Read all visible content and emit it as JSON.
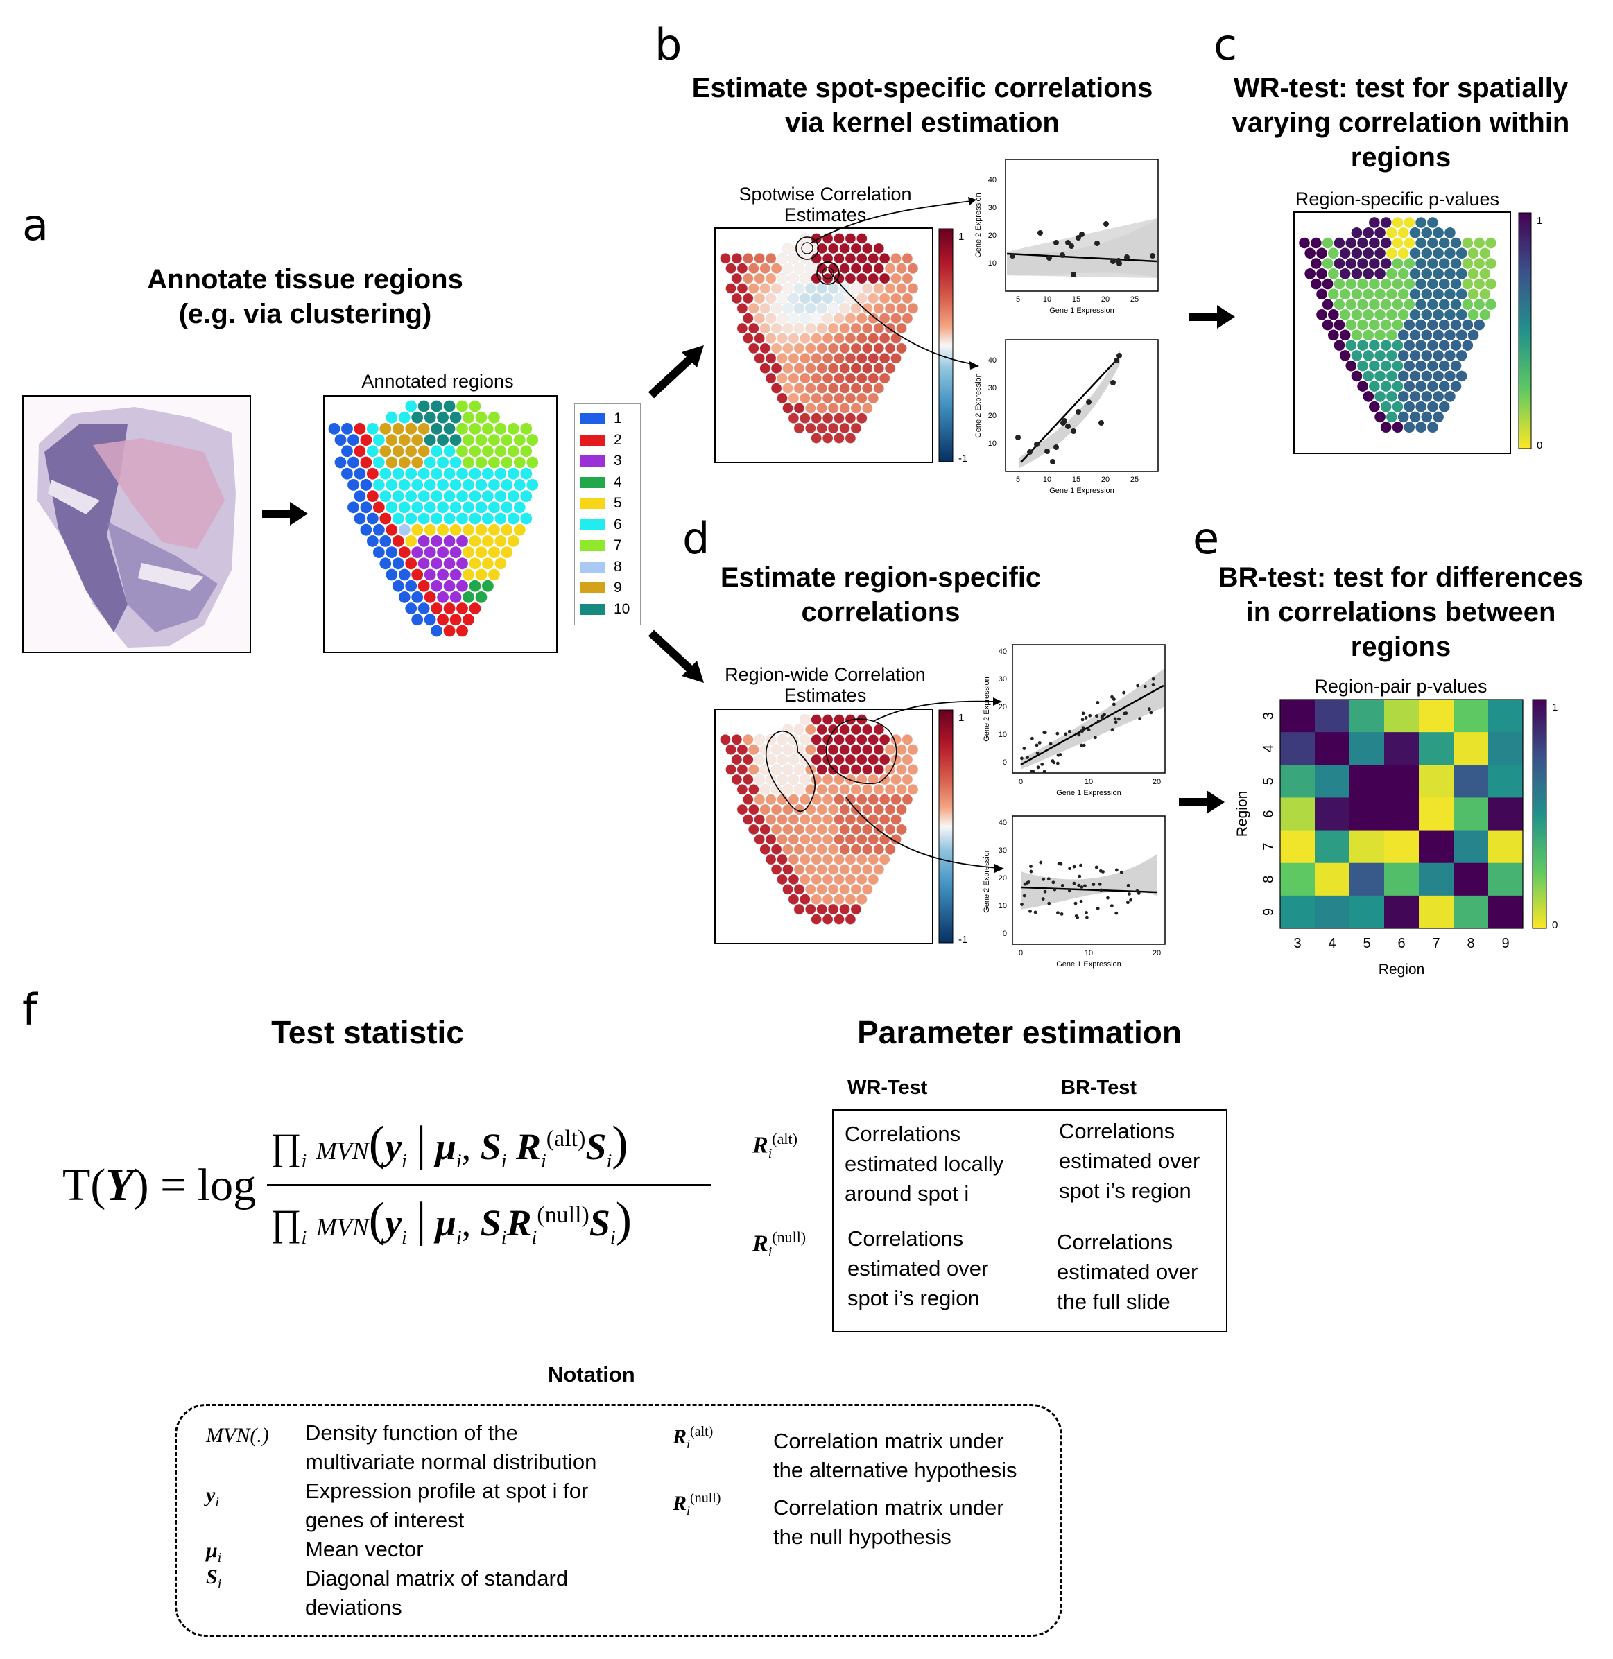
{
  "panels": {
    "a": {
      "letter": "a",
      "title": "Annotate tissue regions\n(e.g. via clustering)",
      "subtitle": "Annotated regions",
      "legend": [
        "1",
        "2",
        "3",
        "4",
        "5",
        "6",
        "7",
        "8",
        "9",
        "10"
      ],
      "legend_colors": [
        "#1f5fe6",
        "#e41a1c",
        "#9b30d9",
        "#22a84a",
        "#f7d61a",
        "#22ecf0",
        "#8fe82a",
        "#a9c8f2",
        "#d4a21a",
        "#168a80"
      ]
    },
    "b": {
      "letter": "b",
      "title": "Estimate spot-specific correlations\nvia kernel estimation",
      "subtitle": "Spotwise Correlation\nEstimates",
      "colorbar_max": "1",
      "colorbar_min": "-1"
    },
    "c": {
      "letter": "c",
      "title": "WR-test: test for spatially\nvarying correlation within\nregions",
      "subtitle": "Region-specific p-values",
      "colorbar_max": "1",
      "colorbar_min": "0"
    },
    "d": {
      "letter": "d",
      "title": "Estimate region-specific\ncorrelations",
      "subtitle": "Region-wide Correlation\nEstimates",
      "colorbar_max": "1",
      "colorbar_min": "-1"
    },
    "e": {
      "letter": "e",
      "title": "BR-test: test for differences\nin correlations between\nregions",
      "subtitle": "Region-pair p-values",
      "colorbar_max": "1",
      "colorbar_min": "0"
    },
    "f": {
      "letter": "f"
    }
  },
  "scatter_b_top": {
    "xlabel": "Gene 1 Expression",
    "ylabel": "Gene 2 Expression",
    "xticks": [
      "5",
      "10",
      "15",
      "20",
      "25"
    ],
    "yticks": [
      "10",
      "20",
      "30",
      "40"
    ]
  },
  "scatter_b_bottom": {
    "xlabel": "Gene 1 Expression",
    "ylabel": "Gene 2 Expression",
    "xticks": [
      "5",
      "10",
      "15",
      "20",
      "25"
    ],
    "yticks": [
      "10",
      "20",
      "30",
      "40"
    ]
  },
  "scatter_d_top": {
    "xlabel": "Gene 1 Expression",
    "ylabel": "Gene 2 Expression",
    "xticks": [
      "0",
      "10",
      "20"
    ],
    "yticks": [
      "0",
      "10",
      "20",
      "30",
      "40"
    ]
  },
  "scatter_d_bottom": {
    "xlabel": "Gene 1 Expression",
    "ylabel": "Gene 2 Expression",
    "xticks": [
      "0",
      "10",
      "20"
    ],
    "yticks": [
      "0",
      "10",
      "20",
      "30",
      "40"
    ]
  },
  "chart_data": {
    "type": "heatmap",
    "title": "Region-pair p-values",
    "xlabel": "Region",
    "ylabel": "Region",
    "x": [
      "3",
      "4",
      "5",
      "6",
      "7",
      "8",
      "9"
    ],
    "y": [
      "3",
      "4",
      "5",
      "6",
      "7",
      "8",
      "9"
    ],
    "values": [
      [
        1.0,
        0.82,
        0.4,
        0.12,
        0.02,
        0.25,
        0.5
      ],
      [
        0.82,
        1.0,
        0.55,
        0.95,
        0.45,
        0.03,
        0.55
      ],
      [
        0.4,
        0.55,
        1.0,
        1.0,
        0.05,
        0.72,
        0.5
      ],
      [
        0.12,
        0.95,
        1.0,
        1.0,
        0.02,
        0.3,
        0.98
      ],
      [
        0.02,
        0.45,
        0.05,
        0.02,
        1.0,
        0.55,
        0.03
      ],
      [
        0.25,
        0.03,
        0.72,
        0.3,
        0.55,
        1.0,
        0.35
      ],
      [
        0.5,
        0.55,
        0.5,
        0.98,
        0.03,
        0.35,
        1.0
      ]
    ],
    "zlim": [
      0,
      1
    ],
    "colormap": "viridis"
  },
  "formula": {
    "heading": "Test statistic",
    "lhs": "T(",
    "Y": "Y",
    "rhs_close": ") = log"
  },
  "params": {
    "heading": "Parameter estimation",
    "col1": "WR-Test",
    "col2": "BR-Test",
    "r_alt_wr": "Correlations\nestimated locally\naround spot i",
    "r_alt_br": "Correlations\nestimated over\nspot i’s region",
    "r_null_wr": "Correlations\nestimated over\nspot i’s region",
    "r_null_br": "Correlations\nestimated over\nthe full slide"
  },
  "notation": {
    "heading": "Notation",
    "mvn": "MVN(.)",
    "mvn_desc": "Density function of the\nmultivariate normal distribution",
    "y_desc": "Expression profile at spot i for\ngenes of interest",
    "mu_desc": "Mean vector",
    "s_desc": "Diagonal matrix of  standard\ndeviations",
    "ralt_desc": "Correlation matrix under\nthe alternative hypothesis",
    "rnull_desc": "Correlation matrix under\nthe null hypothesis"
  }
}
